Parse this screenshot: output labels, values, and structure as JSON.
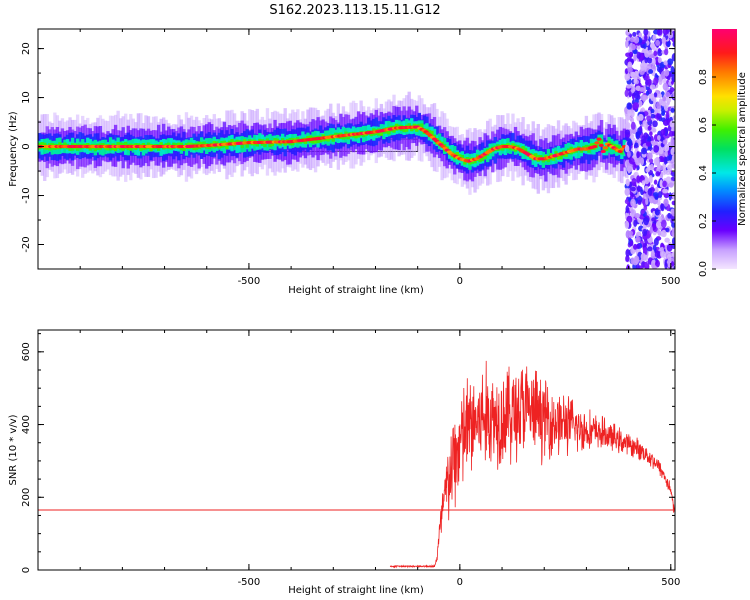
{
  "title": "S162.2023.113.15.11.G12",
  "colorbar": {
    "label": "Normalized spectral amplitude",
    "ticks": [
      "0.0",
      "0.2",
      "0.4",
      "0.6",
      "0.8"
    ],
    "tick_values": [
      0.0,
      0.2,
      0.4,
      0.6,
      0.8
    ],
    "range": [
      0,
      1
    ]
  },
  "colors": {
    "snr_line": "#ee2222",
    "threshold_line": "#ee2222",
    "axis": "#000000"
  },
  "chart_data": [
    {
      "type": "heatmap",
      "xlabel": "Height of straight line (km)",
      "ylabel": "Frequency (Hz)",
      "xlim": [
        -1000,
        510
      ],
      "ylim": [
        -25,
        24
      ],
      "x_ticks": [
        "-500",
        "0",
        "500"
      ],
      "x_tick_values": [
        -500,
        0,
        500
      ],
      "y_ticks": [
        "-20",
        "-10",
        "0",
        "10",
        "20"
      ],
      "y_tick_values": [
        -20,
        -10,
        0,
        10,
        20
      ],
      "ridge": {
        "x": [
          -1000,
          -900,
          -800,
          -700,
          -650,
          -600,
          -550,
          -500,
          -450,
          -400,
          -350,
          -300,
          -250,
          -200,
          -150,
          -100,
          -80,
          -60,
          -40,
          -20,
          0,
          20,
          40,
          60,
          80,
          100,
          120,
          140,
          160,
          180,
          200,
          220,
          240,
          260,
          280,
          300,
          320,
          330,
          340,
          350,
          360,
          370,
          380,
          390
        ],
        "y": [
          0,
          0,
          0,
          0,
          0,
          0.2,
          0.5,
          0.8,
          0.9,
          1.0,
          1.5,
          2.0,
          2.5,
          3.0,
          3.8,
          4.0,
          3.0,
          1.5,
          0,
          -1.5,
          -2.5,
          -3.0,
          -2.5,
          -1.5,
          -0.5,
          0,
          0,
          -0.5,
          -1.5,
          -2.5,
          -2.5,
          -2.0,
          -1.5,
          -1.0,
          -0.5,
          -0.5,
          0,
          1.5,
          -1.0,
          0.5,
          0,
          -0.5,
          -1.0,
          0
        ]
      },
      "noise_band_x": [
        395,
        510
      ],
      "reference_band_y": [
        -1.0,
        1.5
      ],
      "reference_band_x": [
        -1000,
        -100
      ]
    },
    {
      "type": "line",
      "xlabel": "Height of straight line (km)",
      "ylabel": "SNR (10 * v/v)",
      "xlim": [
        -1000,
        510
      ],
      "ylim": [
        0,
        660
      ],
      "x_ticks": [
        "-500",
        "0",
        "500"
      ],
      "x_tick_values": [
        -500,
        0,
        500
      ],
      "y_ticks": [
        "0",
        "200",
        "400",
        "600"
      ],
      "y_tick_values": [
        0,
        200,
        400,
        600
      ],
      "threshold": 165,
      "series": [
        {
          "x": [
            -165,
            -150,
            -120,
            -90,
            -70,
            -60,
            -55,
            -50,
            -45,
            -40,
            -35,
            -30,
            -25,
            -20,
            -15,
            -10,
            -5,
            0,
            10,
            20,
            30,
            40,
            50,
            60,
            80,
            100,
            120,
            140,
            150,
            160,
            180,
            200,
            220,
            240,
            260,
            280,
            300,
            320,
            340,
            360,
            380,
            400,
            420,
            440,
            460,
            480,
            500,
            510
          ],
          "y": [
            10,
            10,
            10,
            10,
            10,
            10,
            30,
            80,
            130,
            170,
            200,
            230,
            250,
            270,
            290,
            310,
            330,
            350,
            370,
            390,
            400,
            410,
            415,
            420,
            420,
            425,
            430,
            440,
            445,
            440,
            430,
            420,
            410,
            405,
            400,
            390,
            385,
            380,
            375,
            365,
            355,
            345,
            335,
            320,
            300,
            270,
            220,
            150
          ],
          "spread": [
            0,
            0,
            0,
            0,
            0,
            0,
            15,
            40,
            60,
            80,
            100,
            110,
            120,
            130,
            140,
            150,
            150,
            150,
            150,
            150,
            150,
            150,
            150,
            150,
            140,
            140,
            140,
            140,
            140,
            130,
            120,
            110,
            100,
            90,
            80,
            70,
            60,
            50,
            45,
            40,
            35,
            30,
            28,
            26,
            24,
            22,
            20,
            15
          ]
        }
      ]
    }
  ]
}
